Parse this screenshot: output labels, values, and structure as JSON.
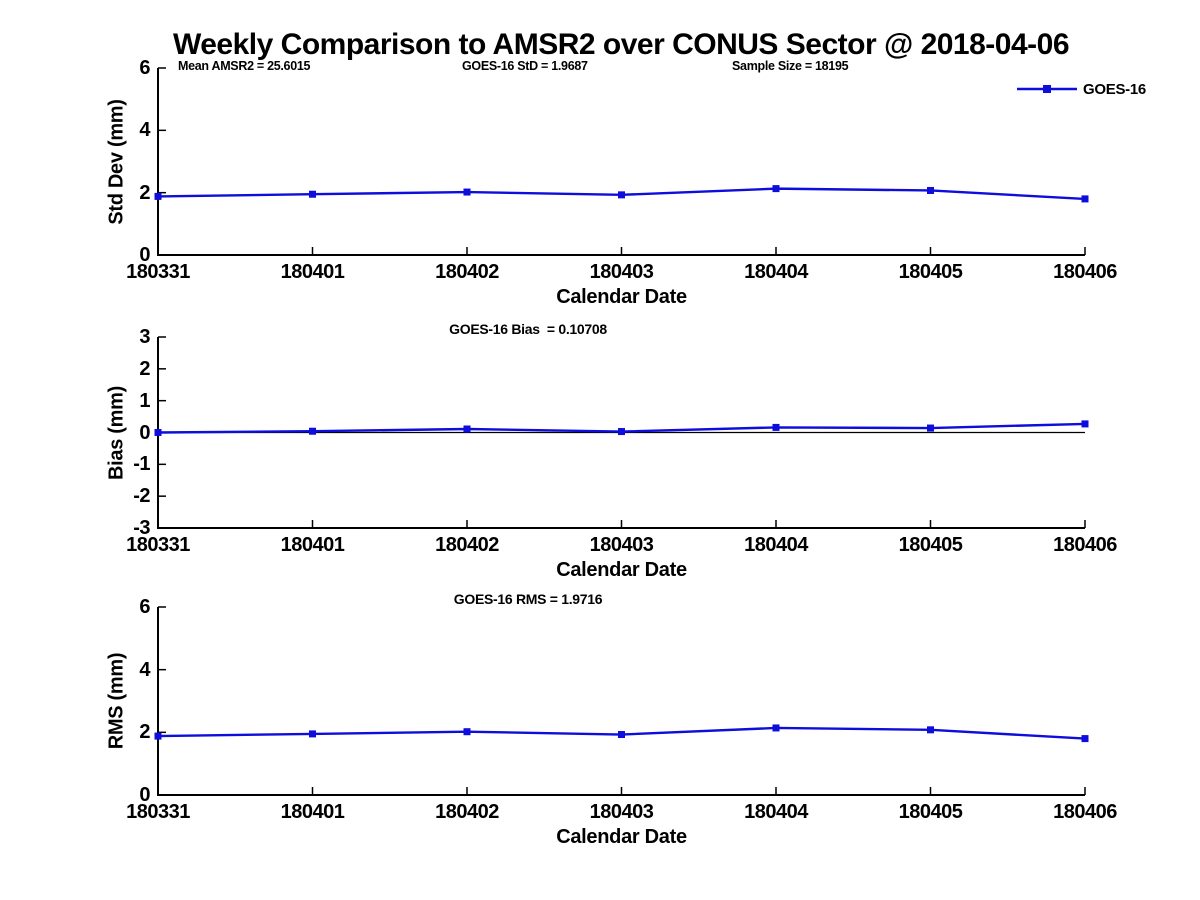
{
  "page_title": "Weekly Comparison to AMSR2 over CONUS Sector @ 2018-04-06",
  "annotations": {
    "mean_amsr2": "Mean AMSR2 = 25.6015",
    "goes_std": "GOES-16 StD = 1.9687",
    "sample_size": "Sample Size = 18195"
  },
  "legend": {
    "label": "GOES-16",
    "position": "top-right",
    "line_color": "#0d0ddc"
  },
  "colors": {
    "series_blue": "#0d0ddc",
    "axis_black": "#000000",
    "background": "#ffffff",
    "text": "#000000"
  },
  "chart_data": [
    {
      "type": "line",
      "key": "std",
      "title": "",
      "categories": [
        "180331",
        "180401",
        "180402",
        "180403",
        "180404",
        "180405",
        "180406"
      ],
      "series": [
        {
          "name": "GOES-16",
          "values": [
            1.88,
            1.95,
            2.02,
            1.93,
            2.13,
            2.07,
            1.8
          ]
        }
      ],
      "xlabel": "Calendar Date",
      "ylabel": "Std Dev (mm)",
      "ylim": [
        0,
        6
      ],
      "yticks": [
        0,
        2,
        4,
        6
      ],
      "grid": false,
      "zero_line": false,
      "marker": "square"
    },
    {
      "type": "line",
      "key": "bias",
      "title": "GOES-16 Bias  = 0.10708",
      "categories": [
        "180331",
        "180401",
        "180402",
        "180403",
        "180404",
        "180405",
        "180406"
      ],
      "series": [
        {
          "name": "GOES-16",
          "values": [
            0.0,
            0.04,
            0.11,
            0.03,
            0.16,
            0.14,
            0.27
          ]
        }
      ],
      "xlabel": "Calendar Date",
      "ylabel": "Bias (mm)",
      "ylim": [
        -3,
        3
      ],
      "yticks": [
        3,
        2,
        1,
        0,
        -1,
        -2,
        -3
      ],
      "grid": false,
      "zero_line": true,
      "marker": "square"
    },
    {
      "type": "line",
      "key": "rms",
      "title": "GOES-16 RMS = 1.9716",
      "categories": [
        "180331",
        "180401",
        "180402",
        "180403",
        "180404",
        "180405",
        "180406"
      ],
      "series": [
        {
          "name": "GOES-16",
          "values": [
            1.88,
            1.95,
            2.02,
            1.93,
            2.14,
            2.08,
            1.8
          ]
        }
      ],
      "xlabel": "Calendar Date",
      "ylabel": "RMS (mm)",
      "ylim": [
        0,
        6
      ],
      "yticks": [
        0,
        2,
        4,
        6
      ],
      "grid": false,
      "zero_line": false,
      "marker": "square"
    }
  ]
}
